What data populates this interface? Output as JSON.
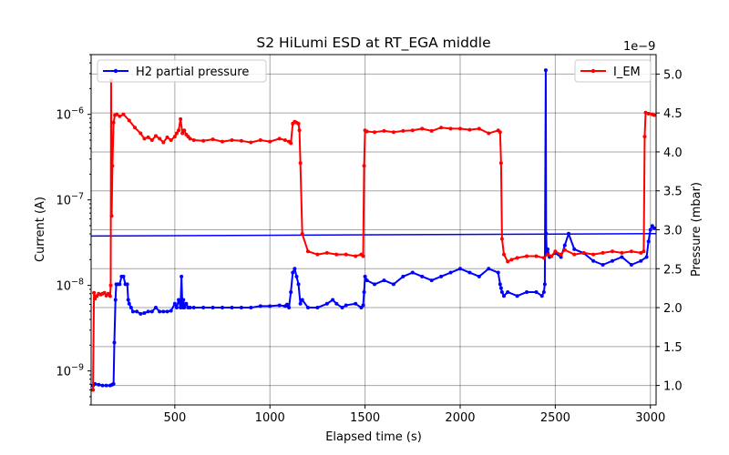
{
  "chart_data": {
    "type": "line",
    "title": "S2 HiLumi ESD at RT_EGA middle",
    "xlabel": "Elapsed time (s)",
    "ylabel_left": "Current (A)",
    "ylabel_right": "Pressure (mbar)",
    "right_axis_multiplier": "1e−9",
    "xlim": [
      60,
      3030
    ],
    "ylim_left": [
      4e-10,
      5e-06
    ],
    "yscale_left": "log",
    "ylim_right": [
      7.5e-10,
      5.25e-09
    ],
    "yscale_right": "linear",
    "x_ticks": [
      "500",
      "1000",
      "1500",
      "2000",
      "2500",
      "3000"
    ],
    "y_left_ticks": [
      {
        "base": "10",
        "exp": "−9"
      },
      {
        "base": "10",
        "exp": "−8"
      },
      {
        "base": "10",
        "exp": "−7"
      },
      {
        "base": "10",
        "exp": "−6"
      }
    ],
    "y_right_ticks": [
      "1.0",
      "1.5",
      "2.0",
      "2.5",
      "3.0",
      "3.5",
      "4.0",
      "4.5",
      "5.0"
    ],
    "grid": true,
    "series": [
      {
        "name": "I_EM",
        "axis": "left",
        "color": "#ff0000",
        "legend_position": "top-right",
        "x": [
          70,
          75,
          80,
          90,
          100,
          110,
          120,
          130,
          140,
          150,
          160,
          163,
          165,
          168,
          172,
          178,
          185,
          195,
          210,
          230,
          260,
          290,
          320,
          340,
          360,
          380,
          400,
          420,
          440,
          460,
          480,
          500,
          510,
          520,
          530,
          540,
          550,
          560,
          570,
          580,
          600,
          650,
          700,
          750,
          800,
          850,
          900,
          950,
          1000,
          1050,
          1080,
          1100,
          1110,
          1120,
          1130,
          1140,
          1150,
          1155,
          1160,
          1170,
          1200,
          1250,
          1300,
          1350,
          1400,
          1450,
          1480,
          1490,
          1495,
          1500,
          1510,
          1550,
          1600,
          1650,
          1700,
          1750,
          1800,
          1850,
          1900,
          1950,
          2000,
          2050,
          2100,
          2150,
          2200,
          2210,
          2215,
          2220,
          2230,
          2250,
          2270,
          2300,
          2350,
          2400,
          2440,
          2460,
          2480,
          2500,
          2530,
          2550,
          2600,
          2650,
          2700,
          2750,
          2800,
          2850,
          2900,
          2950,
          2965,
          2970,
          2975,
          2990,
          3010,
          3020
        ],
        "y": [
          6e-10,
          8.2e-09,
          7e-09,
          7.5e-09,
          8e-09,
          7.8e-09,
          8e-09,
          8.2e-09,
          7.6e-09,
          8e-09,
          7.5e-09,
          1e-08,
          2.5e-06,
          6.5e-08,
          2.5e-07,
          8e-07,
          9.8e-07,
          1e-06,
          9.5e-07,
          1e-06,
          8.5e-07,
          7e-07,
          6e-07,
          5.2e-07,
          5.4e-07,
          5e-07,
          5.6e-07,
          5.2e-07,
          4.7e-07,
          5.4e-07,
          5e-07,
          5.5e-07,
          6e-07,
          6.5e-07,
          8.8e-07,
          6e-07,
          6.5e-07,
          5.8e-07,
          5.5e-07,
          5.2e-07,
          5e-07,
          4.9e-07,
          5.1e-07,
          4.8e-07,
          5e-07,
          4.9e-07,
          4.7e-07,
          5e-07,
          4.8e-07,
          5.2e-07,
          5e-07,
          4.8e-07,
          4.6e-07,
          7.8e-07,
          8.2e-07,
          8e-07,
          7.8e-07,
          6.5e-07,
          2.7e-07,
          4e-08,
          2.5e-08,
          2.3e-08,
          2.4e-08,
          2.3e-08,
          2.3e-08,
          2.2e-08,
          2.3e-08,
          2.2e-08,
          2.5e-07,
          6.5e-07,
          6.3e-07,
          6.2e-07,
          6.4e-07,
          6.2e-07,
          6.4e-07,
          6.5e-07,
          6.8e-07,
          6.4e-07,
          7e-07,
          6.8e-07,
          6.8e-07,
          6.6e-07,
          6.8e-07,
          6e-07,
          6.5e-07,
          6.2e-07,
          2.7e-07,
          3.5e-08,
          2.3e-08,
          1.9e-08,
          2e-08,
          2.1e-08,
          2.2e-08,
          2.2e-08,
          2.1e-08,
          2.3e-08,
          2.2e-08,
          2.5e-08,
          2.3e-08,
          2.6e-08,
          2.3e-08,
          2.4e-08,
          2.3e-08,
          2.4e-08,
          2.5e-08,
          2.4e-08,
          2.5e-08,
          2.4e-08,
          2.5e-08,
          5.5e-07,
          1.05e-06,
          1.02e-06,
          1e-06,
          9.8e-07
        ]
      },
      {
        "name": "H2 partial pressure",
        "axis": "right",
        "color": "#0000ff",
        "legend_position": "top-left",
        "x": [
          70,
          80,
          100,
          120,
          140,
          160,
          170,
          178,
          182,
          188,
          192,
          200,
          210,
          220,
          230,
          240,
          250,
          255,
          260,
          270,
          280,
          300,
          320,
          340,
          360,
          380,
          400,
          420,
          440,
          460,
          480,
          500,
          510,
          520,
          530,
          535,
          540,
          545,
          550,
          560,
          570,
          580,
          600,
          650,
          700,
          750,
          800,
          850,
          900,
          950,
          1000,
          1050,
          1080,
          1090,
          1095,
          1100,
          1110,
          1120,
          1130,
          1140,
          1150,
          1160,
          1170,
          1200,
          1250,
          1300,
          1330,
          1350,
          1380,
          1400,
          1450,
          1480,
          1490,
          1495,
          1500,
          1510,
          1550,
          1600,
          1650,
          1700,
          1750,
          1800,
          1850,
          1900,
          1950,
          2000,
          2050,
          2100,
          2150,
          2200,
          2210,
          2215,
          2220,
          2230,
          2250,
          2300,
          2350,
          2400,
          2430,
          2440,
          2445,
          2450,
          2452,
          2455,
          2460,
          2470,
          2500,
          2530,
          2550,
          2570,
          2600,
          2650,
          2700,
          2750,
          2800,
          2850,
          2900,
          2950,
          2980,
          2990,
          3000,
          3010,
          3020
        ],
        "y": [
          1e-09,
          1.02e-09,
          1.01e-09,
          1e-09,
          1e-09,
          1e-09,
          1.01e-09,
          1.02e-09,
          1.55e-09,
          2.1e-09,
          2.3e-09,
          2.3e-09,
          2.3e-09,
          2.4e-09,
          2.4e-09,
          2.3e-09,
          2.3e-09,
          2.1e-09,
          2.05e-09,
          2e-09,
          1.95e-09,
          1.95e-09,
          1.92e-09,
          1.93e-09,
          1.95e-09,
          1.95e-09,
          2e-09,
          1.95e-09,
          1.95e-09,
          1.95e-09,
          1.96e-09,
          2.05e-09,
          2e-09,
          2.1e-09,
          2e-09,
          2.4e-09,
          2e-09,
          2.1e-09,
          2e-09,
          2.05e-09,
          2e-09,
          2e-09,
          2e-09,
          2e-09,
          2e-09,
          2e-09,
          2e-09,
          2e-09,
          2e-09,
          2.02e-09,
          2.02e-09,
          2.03e-09,
          2.02e-09,
          2.04e-09,
          2.02e-09,
          2e-09,
          2.2e-09,
          2.45e-09,
          2.5e-09,
          2.4e-09,
          2.3e-09,
          2.05e-09,
          2.1e-09,
          2e-09,
          2e-09,
          2.05e-09,
          2.1e-09,
          2.05e-09,
          2e-09,
          2.03e-09,
          2.05e-09,
          2e-09,
          2.03e-09,
          2.2e-09,
          2.4e-09,
          2.35e-09,
          2.3e-09,
          2.35e-09,
          2.3e-09,
          2.4e-09,
          2.45e-09,
          2.4e-09,
          2.35e-09,
          2.4e-09,
          2.45e-09,
          2.5e-09,
          2.45e-09,
          2.4e-09,
          2.5e-09,
          2.45e-09,
          2.3e-09,
          2.25e-09,
          2.2e-09,
          2.15e-09,
          2.2e-09,
          2.15e-09,
          2.2e-09,
          2.2e-09,
          2.15e-09,
          2.2e-09,
          2.3e-09,
          5.05e-09,
          2.95e-09,
          2.7e-09,
          2.75e-09,
          2.65e-09,
          2.7e-09,
          2.65e-09,
          2.8e-09,
          2.95e-09,
          2.75e-09,
          2.7e-09,
          2.6e-09,
          2.55e-09,
          2.6e-09,
          2.65e-09,
          2.55e-09,
          2.6e-09,
          2.65e-09,
          2.85e-09,
          3e-09,
          3.05e-09,
          3.02e-09
        ]
      },
      {
        "name": "",
        "axis": "right",
        "color": "#0000ff",
        "marker": "none",
        "x": [
          60,
          3030
        ],
        "y": [
          2.92e-09,
          2.95e-09
        ]
      }
    ]
  }
}
